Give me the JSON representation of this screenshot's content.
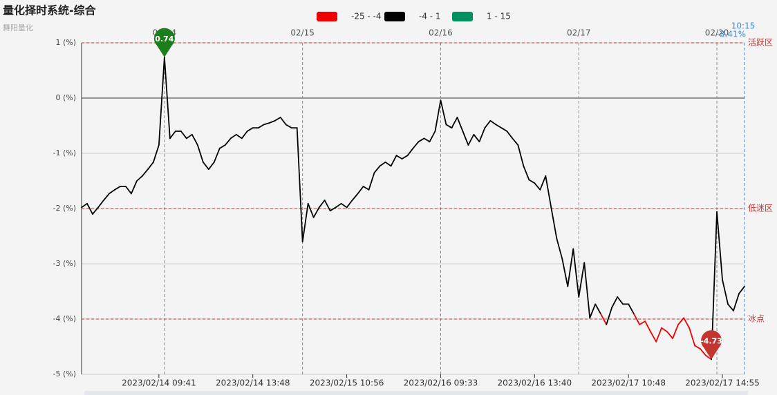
{
  "chart_data": {
    "type": "line",
    "title": "量化择时系统-综合",
    "subtitle": "舞阳量化",
    "pieces": [
      {
        "min": -25,
        "max": -4,
        "label": "-25 - -4",
        "color": "#f00000"
      },
      {
        "min": -4,
        "max": 1,
        "label": "-4 - 1",
        "color": "#000000"
      },
      {
        "min": 1,
        "max": 15,
        "label": "1 - 15",
        "color": "#009060"
      }
    ],
    "values": [
      -1.98,
      -1.91,
      -2.1,
      -1.98,
      -1.85,
      -1.73,
      -1.66,
      -1.6,
      -1.6,
      -1.73,
      -1.5,
      -1.41,
      -1.29,
      -1.16,
      -0.85,
      0.74,
      -0.73,
      -0.6,
      -0.6,
      -0.73,
      -0.66,
      -0.85,
      -1.16,
      -1.29,
      -1.16,
      -0.91,
      -0.85,
      -0.73,
      -0.66,
      -0.73,
      -0.6,
      -0.54,
      -0.54,
      -0.48,
      -0.45,
      -0.41,
      -0.35,
      -0.48,
      -0.54,
      -0.54,
      -2.6,
      -1.91,
      -2.16,
      -1.98,
      -1.85,
      -2.04,
      -1.98,
      -1.91,
      -1.98,
      -1.85,
      -1.73,
      -1.6,
      -1.66,
      -1.35,
      -1.23,
      -1.16,
      -1.23,
      -1.04,
      -1.1,
      -1.04,
      -0.91,
      -0.79,
      -0.73,
      -0.79,
      -0.6,
      -0.04,
      -0.48,
      -0.54,
      -0.35,
      -0.6,
      -0.85,
      -0.66,
      -0.79,
      -0.54,
      -0.41,
      -0.48,
      -0.54,
      -0.6,
      -0.73,
      -0.85,
      -1.23,
      -1.48,
      -1.54,
      -1.66,
      -1.41,
      -1.98,
      -2.54,
      -2.91,
      -3.41,
      -2.73,
      -3.6,
      -2.98,
      -3.98,
      -3.73,
      -3.91,
      -4.1,
      -3.79,
      -3.6,
      -3.73,
      -3.73,
      -3.91,
      -4.1,
      -4.04,
      -4.23,
      -4.41,
      -4.16,
      -4.23,
      -4.35,
      -4.1,
      -3.98,
      -4.16,
      -4.48,
      -4.54,
      -4.66,
      -4.73,
      -2.06,
      -3.29,
      -3.73,
      -3.85,
      -3.54,
      -3.41
    ],
    "last_label": "-3.41%",
    "xlim": [
      0,
      120
    ],
    "xticks": [
      {
        "value": 14,
        "label": "2023/02/14 09:41"
      },
      {
        "value": 31,
        "label": "2023/02/14 13:48"
      },
      {
        "value": 48,
        "label": "2023/02/15 10:56"
      },
      {
        "value": 65,
        "label": "2023/02/16 09:33"
      },
      {
        "value": 82,
        "label": "2023/02/16 13:40"
      },
      {
        "value": 99,
        "label": "2023/02/17 10:48"
      },
      {
        "value": 116,
        "label": "2023/02/17 14:55"
      }
    ],
    "top_ticks": [
      {
        "value": 15,
        "label": "02/14"
      },
      {
        "value": 40,
        "label": "02/15"
      },
      {
        "value": 65,
        "label": "02/16"
      },
      {
        "value": 90,
        "label": "02/17"
      },
      {
        "value": 115,
        "label": "02/20"
      },
      {
        "value": 120,
        "label": "10:15"
      }
    ],
    "ylim": [
      -5,
      1
    ],
    "yticks": [
      {
        "value": 1,
        "label": "1 (%)"
      },
      {
        "value": 0,
        "label": "0 (%)"
      },
      {
        "value": -1,
        "label": "-1 (%)"
      },
      {
        "value": -2,
        "label": "-2 (%)"
      },
      {
        "value": -3,
        "label": "-3 (%)"
      },
      {
        "value": -4,
        "label": "-4 (%)"
      },
      {
        "value": -5,
        "label": "-5 (%)"
      }
    ],
    "grid": true,
    "mark_lines": [
      {
        "value": 1,
        "label": "活跃区"
      },
      {
        "value": -2,
        "label": "低迷区"
      },
      {
        "value": -4,
        "label": "冰点"
      }
    ],
    "mark_points": [
      {
        "type": "max",
        "color": "#1a7f1a"
      },
      {
        "type": "min",
        "color": "#c23531"
      }
    ]
  }
}
